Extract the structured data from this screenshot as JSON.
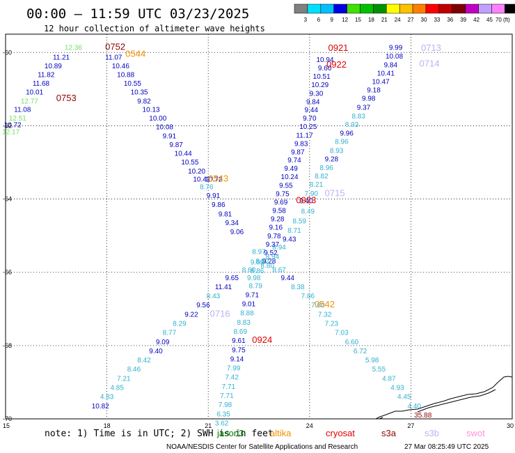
{
  "header": {
    "title": "00:00 – 11:59 UTC 03/23/2025",
    "subtitle": "12 hour collection of altimeter wave heights"
  },
  "color_scale": {
    "labels": [
      "3",
      "6",
      "9",
      "12",
      "15",
      "18",
      "21",
      "24",
      "27",
      "30",
      "33",
      "36",
      "39",
      "42",
      "45",
      "70 (ft)"
    ],
    "colors": [
      "#808080",
      "#00e0ff",
      "#00c0ff",
      "#0000e0",
      "#40e000",
      "#00c000",
      "#009000",
      "#ffff00",
      "#ffc000",
      "#ff8000",
      "#ff0000",
      "#c00000",
      "#800000",
      "#c000c0",
      "#c0a0ff",
      "#ff80ff",
      "#000000"
    ]
  },
  "map": {
    "lon_range": [
      15,
      30
    ],
    "lat_range": [
      -70,
      -59.5
    ],
    "lon_ticks": [
      "15",
      "18",
      "21",
      "24",
      "27",
      "30"
    ],
    "lat_ticks": [
      "-60",
      "-62",
      "-64",
      "-66",
      "-68",
      "-70"
    ],
    "lon_tick_values": [
      15,
      18,
      21,
      24,
      27,
      30
    ],
    "lat_tick_values": [
      -60,
      -62,
      -64,
      -66,
      -68,
      -70
    ]
  },
  "colors": {
    "light_green": "#70e060",
    "navy": "#0000c0",
    "cyan": "#30b0d0",
    "red": "#e00000",
    "darkred": "#900000",
    "orange": "#f09000",
    "lavender": "#c0b0f0",
    "darkgreen": "#008000",
    "pink": "#ff90e0"
  },
  "observations": [
    {
      "lon": 16.75,
      "lat": -59.93,
      "v": "12.36",
      "c": "light_green"
    },
    {
      "lon": 16.4,
      "lat": -60.19,
      "v": "11.21",
      "c": "navy"
    },
    {
      "lon": 16.15,
      "lat": -60.43,
      "v": "10.89",
      "c": "navy"
    },
    {
      "lon": 15.95,
      "lat": -60.67,
      "v": "11.82",
      "c": "navy"
    },
    {
      "lon": 15.8,
      "lat": -60.91,
      "v": "11.68",
      "c": "navy"
    },
    {
      "lon": 15.6,
      "lat": -61.15,
      "v": "10.01",
      "c": "navy"
    },
    {
      "lon": 15.45,
      "lat": -61.39,
      "v": "12.77",
      "c": "light_green"
    },
    {
      "lon": 15.25,
      "lat": -61.62,
      "v": "11.08",
      "c": "navy"
    },
    {
      "lon": 15.1,
      "lat": -61.86,
      "v": "12.51",
      "c": "light_green"
    },
    {
      "lon": 14.95,
      "lat": -62.04,
      "v": "10.72",
      "c": "navy"
    },
    {
      "lon": 14.9,
      "lat": -62.23,
      "v": "12.17",
      "c": "light_green"
    },
    {
      "lon": 17.95,
      "lat": -60.19,
      "v": "11.07",
      "c": "navy"
    },
    {
      "lon": 18.15,
      "lat": -60.43,
      "v": "10.46",
      "c": "navy"
    },
    {
      "lon": 18.3,
      "lat": -60.67,
      "v": "10.88",
      "c": "navy"
    },
    {
      "lon": 18.5,
      "lat": -60.91,
      "v": "10.55",
      "c": "navy"
    },
    {
      "lon": 18.7,
      "lat": -61.15,
      "v": "10.35",
      "c": "navy"
    },
    {
      "lon": 18.9,
      "lat": -61.39,
      "v": "9.82",
      "c": "navy"
    },
    {
      "lon": 19.05,
      "lat": -61.62,
      "v": "10.13",
      "c": "navy"
    },
    {
      "lon": 19.25,
      "lat": -61.86,
      "v": "10.00",
      "c": "navy"
    },
    {
      "lon": 19.45,
      "lat": -62.1,
      "v": "10.08",
      "c": "navy"
    },
    {
      "lon": 19.65,
      "lat": -62.34,
      "v": "9.91",
      "c": "navy"
    },
    {
      "lon": 19.85,
      "lat": -62.58,
      "v": "9.87",
      "c": "navy"
    },
    {
      "lon": 20.0,
      "lat": -62.82,
      "v": "10.44",
      "c": "navy"
    },
    {
      "lon": 20.2,
      "lat": -63.06,
      "v": "10.55",
      "c": "navy"
    },
    {
      "lon": 20.4,
      "lat": -63.3,
      "v": "10.20",
      "c": "navy"
    },
    {
      "lon": 20.55,
      "lat": -63.52,
      "v": "10.41",
      "c": "navy"
    },
    {
      "lon": 20.75,
      "lat": -63.73,
      "v": "8.76",
      "c": "cyan"
    },
    {
      "lon": 20.95,
      "lat": -63.97,
      "v": "9.91",
      "c": "navy"
    },
    {
      "lon": 21.1,
      "lat": -64.22,
      "v": "9.86",
      "c": "navy"
    },
    {
      "lon": 21.3,
      "lat": -64.47,
      "v": "9.81",
      "c": "navy"
    },
    {
      "lon": 21.5,
      "lat": -64.71,
      "v": "9.34",
      "c": "navy"
    },
    {
      "lon": 21.65,
      "lat": -64.96,
      "v": "9.06",
      "c": "navy"
    },
    {
      "lon": 20.9,
      "lat": -63.52,
      "v": "10.72",
      "c": "navy"
    },
    {
      "lon": 24.2,
      "lat": -60.26,
      "v": "10.94",
      "c": "navy"
    },
    {
      "lon": 24.25,
      "lat": -60.49,
      "v": "9.60",
      "c": "navy"
    },
    {
      "lon": 24.1,
      "lat": -60.72,
      "v": "10.51",
      "c": "navy"
    },
    {
      "lon": 24.05,
      "lat": -60.95,
      "v": "10.29",
      "c": "navy"
    },
    {
      "lon": 24.0,
      "lat": -61.18,
      "v": "9.30",
      "c": "navy"
    },
    {
      "lon": 23.9,
      "lat": -61.41,
      "v": "9.84",
      "c": "navy"
    },
    {
      "lon": 23.85,
      "lat": -61.63,
      "v": "9.44",
      "c": "navy"
    },
    {
      "lon": 23.8,
      "lat": -61.86,
      "v": "9.70",
      "c": "navy"
    },
    {
      "lon": 23.7,
      "lat": -62.09,
      "v": "10.25",
      "c": "navy"
    },
    {
      "lon": 23.6,
      "lat": -62.32,
      "v": "11.17",
      "c": "navy"
    },
    {
      "lon": 23.55,
      "lat": -62.55,
      "v": "9.83",
      "c": "navy"
    },
    {
      "lon": 23.45,
      "lat": -62.78,
      "v": "9.87",
      "c": "navy"
    },
    {
      "lon": 23.35,
      "lat": -63.0,
      "v": "9.74",
      "c": "navy"
    },
    {
      "lon": 23.25,
      "lat": -63.23,
      "v": "9.49",
      "c": "navy"
    },
    {
      "lon": 23.15,
      "lat": -63.46,
      "v": "10.24",
      "c": "navy"
    },
    {
      "lon": 23.1,
      "lat": -63.69,
      "v": "9.55",
      "c": "navy"
    },
    {
      "lon": 23.0,
      "lat": -63.92,
      "v": "9.75",
      "c": "navy"
    },
    {
      "lon": 22.95,
      "lat": -64.15,
      "v": "9.69",
      "c": "navy"
    },
    {
      "lon": 22.9,
      "lat": -64.38,
      "v": "9.58",
      "c": "navy"
    },
    {
      "lon": 22.85,
      "lat": -64.61,
      "v": "9.28",
      "c": "navy"
    },
    {
      "lon": 22.8,
      "lat": -64.84,
      "v": "9.16",
      "c": "navy"
    },
    {
      "lon": 22.75,
      "lat": -65.07,
      "v": "9.78",
      "c": "navy"
    },
    {
      "lon": 22.7,
      "lat": -65.3,
      "v": "9.37",
      "c": "navy"
    },
    {
      "lon": 22.65,
      "lat": -65.53,
      "v": "9.52",
      "c": "navy"
    },
    {
      "lon": 22.6,
      "lat": -65.76,
      "v": "9.28",
      "c": "navy"
    },
    {
      "lon": 23.7,
      "lat": -64.11,
      "v": "9.40",
      "c": "navy"
    },
    {
      "lon": 23.75,
      "lat": -64.4,
      "v": "8.49",
      "c": "cyan"
    },
    {
      "lon": 23.5,
      "lat": -64.66,
      "v": "8.59",
      "c": "cyan"
    },
    {
      "lon": 23.35,
      "lat": -64.92,
      "v": "8.71",
      "c": "cyan"
    },
    {
      "lon": 23.2,
      "lat": -65.16,
      "v": "9.43",
      "c": "navy"
    },
    {
      "lon": 22.9,
      "lat": -65.38,
      "v": "8.94",
      "c": "cyan"
    },
    {
      "lon": 22.7,
      "lat": -65.63,
      "v": "8.94",
      "c": "cyan"
    },
    {
      "lon": 22.55,
      "lat": -65.88,
      "v": "8.80",
      "c": "cyan"
    },
    {
      "lon": 22.3,
      "lat": -65.5,
      "v": "8.97",
      "c": "cyan"
    },
    {
      "lon": 22.4,
      "lat": -65.76,
      "v": "8.82",
      "c": "cyan"
    },
    {
      "lon": 22.25,
      "lat": -66.02,
      "v": "8.86",
      "c": "cyan"
    },
    {
      "lon": 22.25,
      "lat": -65.79,
      "v": "9.09",
      "c": "cyan"
    },
    {
      "lon": 22.0,
      "lat": -66.0,
      "v": "8.60",
      "c": "cyan"
    },
    {
      "lon": 22.9,
      "lat": -66.0,
      "v": "8.67",
      "c": "cyan"
    },
    {
      "lon": 26.35,
      "lat": -59.93,
      "v": "9.99",
      "c": "navy"
    },
    {
      "lon": 26.25,
      "lat": -60.17,
      "v": "10.08",
      "c": "navy"
    },
    {
      "lon": 26.2,
      "lat": -60.4,
      "v": "9.84",
      "c": "navy"
    },
    {
      "lon": 26.0,
      "lat": -60.63,
      "v": "10.41",
      "c": "navy"
    },
    {
      "lon": 25.85,
      "lat": -60.86,
      "v": "10.47",
      "c": "navy"
    },
    {
      "lon": 25.7,
      "lat": -61.09,
      "v": "9.18",
      "c": "navy"
    },
    {
      "lon": 25.55,
      "lat": -61.32,
      "v": "9.98",
      "c": "navy"
    },
    {
      "lon": 25.4,
      "lat": -61.56,
      "v": "9.37",
      "c": "navy"
    },
    {
      "lon": 25.25,
      "lat": -61.8,
      "v": "8.83",
      "c": "cyan"
    },
    {
      "lon": 25.05,
      "lat": -62.03,
      "v": "8.93",
      "c": "cyan"
    },
    {
      "lon": 24.9,
      "lat": -62.27,
      "v": "9.96",
      "c": "navy"
    },
    {
      "lon": 24.75,
      "lat": -62.5,
      "v": "8.96",
      "c": "cyan"
    },
    {
      "lon": 24.6,
      "lat": -62.74,
      "v": "8.93",
      "c": "cyan"
    },
    {
      "lon": 24.45,
      "lat": -62.97,
      "v": "9.28",
      "c": "navy"
    },
    {
      "lon": 24.3,
      "lat": -63.21,
      "v": "8.96",
      "c": "cyan"
    },
    {
      "lon": 24.15,
      "lat": -63.44,
      "v": "8.82",
      "c": "cyan"
    },
    {
      "lon": 24.0,
      "lat": -63.67,
      "v": "8.21",
      "c": "cyan"
    },
    {
      "lon": 23.85,
      "lat": -63.91,
      "v": "7.90",
      "c": "cyan"
    },
    {
      "lon": 23.15,
      "lat": -66.21,
      "v": "9.44",
      "c": "navy"
    },
    {
      "lon": 23.45,
      "lat": -66.46,
      "v": "8.38",
      "c": "cyan"
    },
    {
      "lon": 23.75,
      "lat": -66.71,
      "v": "7.86",
      "c": "cyan"
    },
    {
      "lon": 24.05,
      "lat": -66.96,
      "v": "7.60",
      "c": "cyan"
    },
    {
      "lon": 24.25,
      "lat": -67.21,
      "v": "7.32",
      "c": "cyan"
    },
    {
      "lon": 24.45,
      "lat": -67.46,
      "v": "7.23",
      "c": "cyan"
    },
    {
      "lon": 24.75,
      "lat": -67.71,
      "v": "7.03",
      "c": "cyan"
    },
    {
      "lon": 25.05,
      "lat": -67.96,
      "v": "6.60",
      "c": "cyan"
    },
    {
      "lon": 25.3,
      "lat": -68.21,
      "v": "6.72",
      "c": "cyan"
    },
    {
      "lon": 25.65,
      "lat": -68.46,
      "v": "5.98",
      "c": "cyan"
    },
    {
      "lon": 25.85,
      "lat": -68.71,
      "v": "5.55",
      "c": "cyan"
    },
    {
      "lon": 26.15,
      "lat": -68.96,
      "v": "4.87",
      "c": "cyan"
    },
    {
      "lon": 26.4,
      "lat": -69.21,
      "v": "4.93",
      "c": "cyan"
    },
    {
      "lon": 26.6,
      "lat": -69.46,
      "v": "4.45",
      "c": "cyan"
    },
    {
      "lon": 26.9,
      "lat": -69.71,
      "v": "4.40",
      "c": "cyan"
    },
    {
      "lon": 27.1,
      "lat": -69.96,
      "v": "35.88",
      "c": "darkred"
    },
    {
      "lon": 21.5,
      "lat": -66.21,
      "v": "9.65",
      "c": "navy"
    },
    {
      "lon": 21.2,
      "lat": -66.46,
      "v": "11.41",
      "c": "navy"
    },
    {
      "lon": 20.95,
      "lat": -66.71,
      "v": "8.43",
      "c": "cyan"
    },
    {
      "lon": 20.65,
      "lat": -66.96,
      "v": "9.56",
      "c": "navy"
    },
    {
      "lon": 20.3,
      "lat": -67.21,
      "v": "9.22",
      "c": "navy"
    },
    {
      "lon": 19.95,
      "lat": -67.46,
      "v": "8.29",
      "c": "cyan"
    },
    {
      "lon": 19.65,
      "lat": -67.71,
      "v": "8.77",
      "c": "cyan"
    },
    {
      "lon": 19.45,
      "lat": -67.96,
      "v": "9.09",
      "c": "navy"
    },
    {
      "lon": 19.25,
      "lat": -68.21,
      "v": "9.40",
      "c": "navy"
    },
    {
      "lon": 18.9,
      "lat": -68.46,
      "v": "8.42",
      "c": "cyan"
    },
    {
      "lon": 18.6,
      "lat": -68.71,
      "v": "8.46",
      "c": "cyan"
    },
    {
      "lon": 18.3,
      "lat": -68.96,
      "v": "7.21",
      "c": "cyan"
    },
    {
      "lon": 18.1,
      "lat": -69.21,
      "v": "4.85",
      "c": "cyan"
    },
    {
      "lon": 17.8,
      "lat": -69.46,
      "v": "4.83",
      "c": "cyan"
    },
    {
      "lon": 17.55,
      "lat": -69.71,
      "v": "10.82",
      "c": "navy"
    },
    {
      "lon": 22.15,
      "lat": -66.21,
      "v": "9.98",
      "c": "cyan"
    },
    {
      "lon": 22.2,
      "lat": -66.43,
      "v": "8.79",
      "c": "cyan"
    },
    {
      "lon": 22.1,
      "lat": -66.68,
      "v": "9.71",
      "c": "navy"
    },
    {
      "lon": 22.0,
      "lat": -66.93,
      "v": "9.01",
      "c": "navy"
    },
    {
      "lon": 21.95,
      "lat": -67.18,
      "v": "8.88",
      "c": "cyan"
    },
    {
      "lon": 21.85,
      "lat": -67.43,
      "v": "8.83",
      "c": "cyan"
    },
    {
      "lon": 21.75,
      "lat": -67.68,
      "v": "8.69",
      "c": "cyan"
    },
    {
      "lon": 21.7,
      "lat": -67.93,
      "v": "9.61",
      "c": "navy"
    },
    {
      "lon": 21.7,
      "lat": -68.18,
      "v": "9.75",
      "c": "navy"
    },
    {
      "lon": 21.65,
      "lat": -68.43,
      "v": "9.14",
      "c": "navy"
    },
    {
      "lon": 21.55,
      "lat": -68.68,
      "v": "7.99",
      "c": "cyan"
    },
    {
      "lon": 21.5,
      "lat": -68.93,
      "v": "7.42",
      "c": "cyan"
    },
    {
      "lon": 21.4,
      "lat": -69.18,
      "v": "7.71",
      "c": "cyan"
    },
    {
      "lon": 21.35,
      "lat": -69.43,
      "v": "7.71",
      "c": "cyan"
    },
    {
      "lon": 21.3,
      "lat": -69.68,
      "v": "7.98",
      "c": "cyan"
    },
    {
      "lon": 21.25,
      "lat": -69.93,
      "v": "6.35",
      "c": "cyan"
    },
    {
      "lon": 21.2,
      "lat": -70.18,
      "v": "3.62",
      "c": "cyan"
    }
  ],
  "pass_labels": [
    {
      "lon": 17.95,
      "lat": -59.93,
      "text": "0752",
      "c": "darkred"
    },
    {
      "lon": 18.55,
      "lat": -60.12,
      "text": "0544",
      "c": "orange"
    },
    {
      "lon": 16.5,
      "lat": -61.33,
      "text": "0753",
      "c": "darkred"
    },
    {
      "lon": 21.0,
      "lat": -63.52,
      "text": "0543",
      "c": "orange"
    },
    {
      "lon": 24.55,
      "lat": -59.96,
      "text": "0921",
      "c": "red"
    },
    {
      "lon": 24.5,
      "lat": -60.41,
      "text": "0922",
      "c": "red"
    },
    {
      "lon": 27.3,
      "lat": -59.96,
      "text": "0713",
      "c": "lavender"
    },
    {
      "lon": 27.25,
      "lat": -60.38,
      "text": "0714",
      "c": "lavender"
    },
    {
      "lon": 24.45,
      "lat": -63.92,
      "text": "0715",
      "c": "lavender"
    },
    {
      "lon": 23.6,
      "lat": -64.11,
      "text": "0923",
      "c": "red"
    },
    {
      "lon": 24.15,
      "lat": -66.96,
      "text": "0542",
      "c": "orange"
    },
    {
      "lon": 21.05,
      "lat": -67.21,
      "text": "0716",
      "c": "lavender"
    },
    {
      "lon": 22.3,
      "lat": -67.93,
      "text": "0924",
      "c": "red"
    }
  ],
  "note": {
    "text": "note: 1) Time is in UTC; 2) SWH is in feet"
  },
  "satellites": [
    {
      "name": "jason3",
      "color": "darkgreen"
    },
    {
      "name": "altika",
      "color": "orange"
    },
    {
      "name": "cryosat",
      "color": "red"
    },
    {
      "name": "s3a",
      "color": "darkred"
    },
    {
      "name": "s3b",
      "color": "lavender"
    },
    {
      "name": "swot",
      "color": "pink"
    }
  ],
  "footer": {
    "credit": "NOAA/NESDIS Center for Satellite Applications and Research",
    "timestamp": "27 Mar 08:25:49 UTC 2025"
  }
}
